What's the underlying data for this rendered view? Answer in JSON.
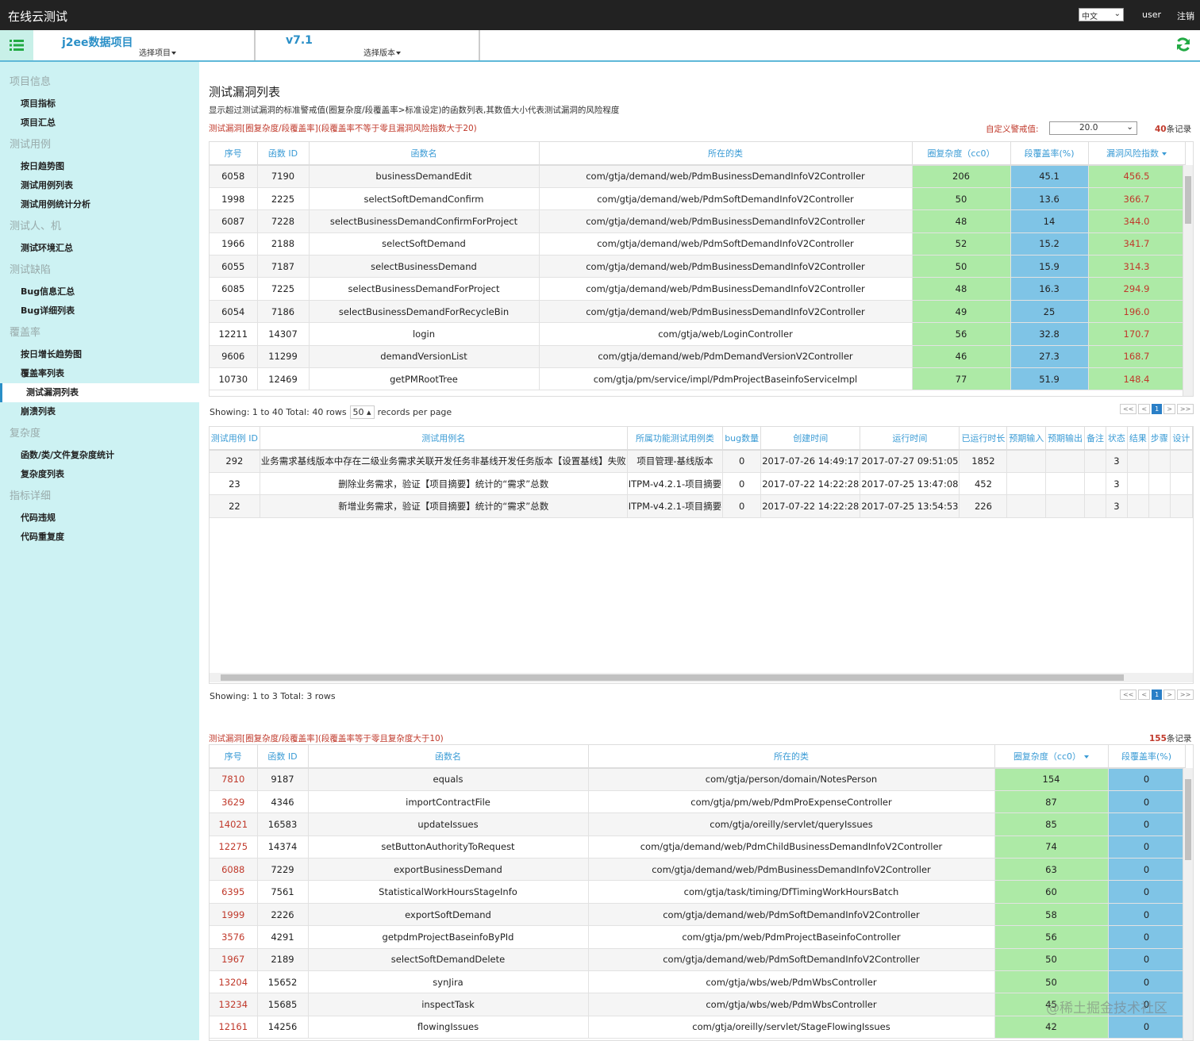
{
  "header": {
    "title": "在线云测试",
    "language": "中文",
    "user": "user",
    "logout": "注销"
  },
  "toolbar": {
    "project": "j2ee数据项目",
    "select_project": "选择项目",
    "version": "v7.1",
    "select_version": "选择版本"
  },
  "sidebar": [
    {
      "title": "项目信息",
      "items": [
        {
          "label": "项目指标"
        },
        {
          "label": "项目汇总"
        }
      ]
    },
    {
      "title": "测试用例",
      "items": [
        {
          "label": "按日趋势图"
        },
        {
          "label": "测试用例列表"
        },
        {
          "label": "测试用例统计分析"
        }
      ]
    },
    {
      "title": "测试人、机",
      "items": [
        {
          "label": "测试环境汇总"
        }
      ]
    },
    {
      "title": "测试缺陷",
      "items": [
        {
          "label": "Bug信息汇总"
        },
        {
          "label": "Bug详细列表"
        }
      ]
    },
    {
      "title": "覆盖率",
      "items": [
        {
          "label": "按日增长趋势图"
        },
        {
          "label": "覆盖率列表"
        },
        {
          "label": "测试漏洞列表",
          "active": true
        },
        {
          "label": "崩溃列表"
        }
      ]
    },
    {
      "title": "复杂度",
      "items": [
        {
          "label": "函数/类/文件复杂度统计"
        },
        {
          "label": "复杂度列表"
        }
      ]
    },
    {
      "title": "指标详细",
      "items": [
        {
          "label": "代码违规"
        },
        {
          "label": "代码重复度"
        }
      ]
    }
  ],
  "main": {
    "title": "测试漏洞列表",
    "description": "显示超过测试漏洞的标准警戒值(圈复杂度/段覆盖率>标准设定)的函数列表,其数值大小代表测试漏洞的风险程度",
    "section1": {
      "heading": "测试漏洞[圈复杂度/段覆盖率](段覆盖率不等于零且漏洞风险指数大于20)",
      "threshold_label": "自定义警戒值:",
      "threshold": "20.0",
      "count": "40",
      "count_suffix": "条记录",
      "columns": [
        {
          "label": "序号"
        },
        {
          "label": "函数 ID"
        },
        {
          "label": "函数名"
        },
        {
          "label": "所在的类"
        },
        {
          "label": "圈复杂度（cc0）",
          "bg": "#adeaa6"
        },
        {
          "label": "段覆盖率(%)",
          "bg": "#7fc4e6"
        },
        {
          "label": "漏洞风险指数",
          "bg": "#adeaa6",
          "color": "#c0392b",
          "sorted": true
        }
      ],
      "rows": [
        [
          "6058",
          "7190",
          "businessDemandEdit",
          "com/gtja/demand/web/PdmBusinessDemandInfoV2Controller",
          "206",
          "45.1",
          "456.5"
        ],
        [
          "1998",
          "2225",
          "selectSoftDemandConfirm",
          "com/gtja/demand/web/PdmSoftDemandInfoV2Controller",
          "50",
          "13.6",
          "366.7"
        ],
        [
          "6087",
          "7228",
          "selectBusinessDemandConfirmForProject",
          "com/gtja/demand/web/PdmBusinessDemandInfoV2Controller",
          "48",
          "14",
          "344.0"
        ],
        [
          "1966",
          "2188",
          "selectSoftDemand",
          "com/gtja/demand/web/PdmSoftDemandInfoV2Controller",
          "52",
          "15.2",
          "341.7"
        ],
        [
          "6055",
          "7187",
          "selectBusinessDemand",
          "com/gtja/demand/web/PdmBusinessDemandInfoV2Controller",
          "50",
          "15.9",
          "314.3"
        ],
        [
          "6085",
          "7225",
          "selectBusinessDemandForProject",
          "com/gtja/demand/web/PdmBusinessDemandInfoV2Controller",
          "48",
          "16.3",
          "294.9"
        ],
        [
          "6054",
          "7186",
          "selectBusinessDemandForRecycleBin",
          "com/gtja/demand/web/PdmBusinessDemandInfoV2Controller",
          "49",
          "25",
          "196.0"
        ],
        [
          "12211",
          "14307",
          "login",
          "com/gtja/web/LoginController",
          "56",
          "32.8",
          "170.7"
        ],
        [
          "9606",
          "11299",
          "demandVersionList",
          "com/gtja/demand/web/PdmDemandVersionV2Controller",
          "46",
          "27.3",
          "168.7"
        ],
        [
          "10730",
          "12469",
          "getPMRootTree",
          "com/gtja/pm/service/impl/PdmProjectBaseinfoServiceImpl",
          "77",
          "51.9",
          "148.4"
        ]
      ],
      "pagination": {
        "summary": "Showing: 1 to 40 Total: 40 rows",
        "page_size": "50",
        "per_page": "records per page",
        "pager": [
          "<<",
          "<",
          "1",
          ">",
          ">>"
        ]
      }
    },
    "section2": {
      "columns": [
        {
          "label": "测试用例 ID"
        },
        {
          "label": "测试用例名"
        },
        {
          "label": "所属功能测试用例类"
        },
        {
          "label": "bug数量"
        },
        {
          "label": "创建时间"
        },
        {
          "label": "运行时间"
        },
        {
          "label": "已运行时长"
        },
        {
          "label": "预期输入"
        },
        {
          "label": "预期输出"
        },
        {
          "label": "备注"
        },
        {
          "label": "状态"
        },
        {
          "label": "结果"
        },
        {
          "label": "步骤"
        },
        {
          "label": "设计"
        }
      ],
      "rows": [
        [
          "292",
          "业务需求基线版本中存在二级业务需求关联开发任务非基线开发任务版本【设置基线】失败",
          "项目管理-基线版本",
          "0",
          "2017-07-26 14:49:17",
          "2017-07-27 09:51:05",
          "1852",
          null,
          null,
          null,
          "3",
          null,
          null,
          null
        ],
        [
          "23",
          "删除业务需求，验证【项目摘要】统计的“需求”总数",
          "ITPM-v4.2.1-项目摘要",
          "0",
          "2017-07-22 14:22:28",
          "2017-07-25 13:47:08",
          "452",
          null,
          null,
          null,
          "3",
          null,
          null,
          null
        ],
        [
          "22",
          "新增业务需求，验证【项目摘要】统计的“需求”总数",
          "ITPM-v4.2.1-项目摘要",
          "0",
          "2017-07-22 14:22:28",
          "2017-07-25 13:54:53",
          "226",
          null,
          null,
          null,
          "3",
          null,
          null,
          null
        ]
      ],
      "pagination": {
        "summary": "Showing: 1 to 3 Total: 3 rows",
        "pager": [
          "<<",
          "<",
          "1",
          ">",
          ">>"
        ]
      }
    },
    "section3": {
      "heading": "测试漏洞[圈复杂度/段覆盖率](段覆盖率等于零且复杂度大于10)",
      "count": "155",
      "count_suffix": "条记录",
      "columns": [
        {
          "label": "序号",
          "color": "#c0392b"
        },
        {
          "label": "函数 ID"
        },
        {
          "label": "函数名"
        },
        {
          "label": "所在的类"
        },
        {
          "label": "圈复杂度（cc0）",
          "bg": "#adeaa6",
          "sorted": true
        },
        {
          "label": "段覆盖率(%)",
          "bg": "#7fc4e6"
        }
      ],
      "rows": [
        [
          "7810",
          "9187",
          "equals",
          "com/gtja/person/domain/NotesPerson",
          "154",
          "0"
        ],
        [
          "3629",
          "4346",
          "importContractFile",
          "com/gtja/pm/web/PdmProExpenseController",
          "87",
          "0"
        ],
        [
          "14021",
          "16583",
          "updateIssues",
          "com/gtja/oreilly/servlet/queryIssues",
          "85",
          "0"
        ],
        [
          "12275",
          "14374",
          "setButtonAuthorityToRequest",
          "com/gtja/demand/web/PdmChildBusinessDemandInfoV2Controller",
          "74",
          "0"
        ],
        [
          "6088",
          "7229",
          "exportBusinessDemand",
          "com/gtja/demand/web/PdmBusinessDemandInfoV2Controller",
          "63",
          "0"
        ],
        [
          "6395",
          "7561",
          "StatisticalWorkHoursStageInfo",
          "com/gtja/task/timing/DfTimingWorkHoursBatch",
          "60",
          "0"
        ],
        [
          "1999",
          "2226",
          "exportSoftDemand",
          "com/gtja/demand/web/PdmSoftDemandInfoV2Controller",
          "58",
          "0"
        ],
        [
          "3576",
          "4291",
          "getpdmProjectBaseinfoByPId",
          "com/gtja/pm/web/PdmProjectBaseinfoController",
          "56",
          "0"
        ],
        [
          "1967",
          "2189",
          "selectSoftDemandDelete",
          "com/gtja/demand/web/PdmSoftDemandInfoV2Controller",
          "50",
          "0"
        ],
        [
          "13204",
          "15652",
          "synJira",
          "com/gtja/wbs/web/PdmWbsController",
          "50",
          "0"
        ],
        [
          "13234",
          "15685",
          "inspectTask",
          "com/gtja/wbs/web/PdmWbsController",
          "45",
          "0"
        ],
        [
          "12161",
          "14256",
          "flowingIssues",
          "com/gtja/oreilly/servlet/StageFlowingIssues",
          "42",
          "0"
        ]
      ]
    }
  },
  "watermark": "@稀土掘金技术社区"
}
